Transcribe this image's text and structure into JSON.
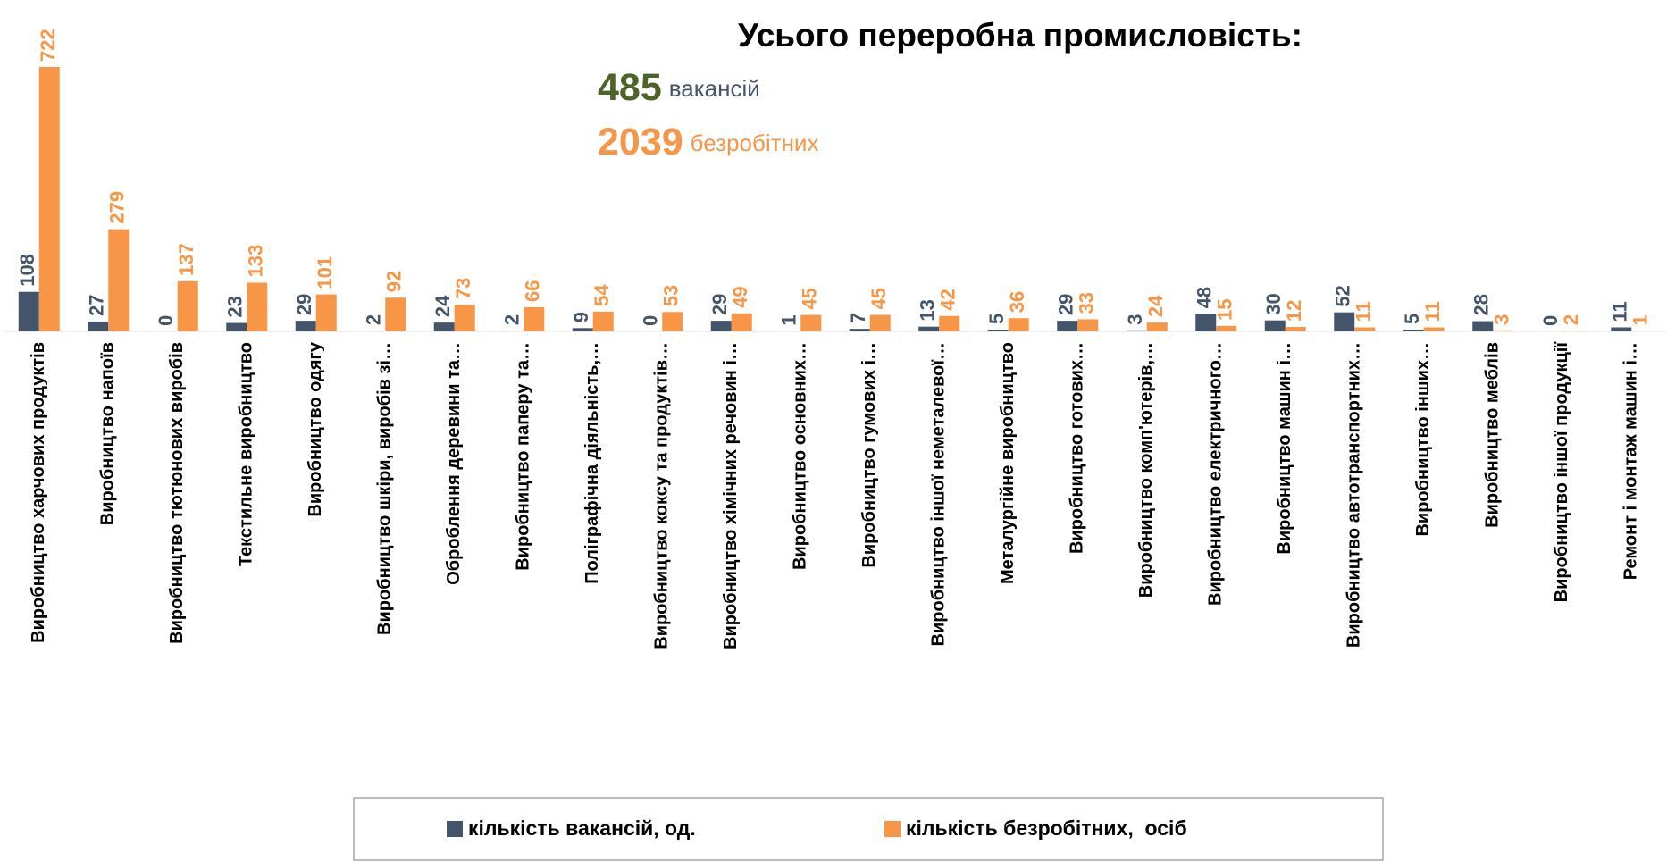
{
  "chart_data": {
    "type": "bar",
    "title": "Усього переробна промисловість:",
    "annotations": [
      {
        "number": "485",
        "text": "вакансій",
        "color": "#4f6228"
      },
      {
        "number": "2039",
        "text": "безробітних",
        "color": "#f79646"
      }
    ],
    "categories": [
      "Виробництво харчових продуктів",
      "Виробництво напоїв",
      "Виробництво тютюнових виробів",
      "Текстильне виробництво",
      "Виробництво одягу",
      "Виробництво шкіри, виробів зі…",
      "Оброблення деревини та…",
      "Виробництво паперу та…",
      "Поліграфічна діяльність,…",
      "Виробництво коксу та продуктів…",
      "Виробництво хімічних речовин і…",
      "Виробництво основних…",
      "Виробництво гумових і…",
      "Виробництво іншої неметалевої…",
      "Металургійне виробництво",
      "Виробництво готових…",
      "Виробництво комп'ютерів,…",
      "Виробництво електричного…",
      "Виробництво машин і…",
      "Виробництво автотранспортних…",
      "Виробництво інших…",
      "Виробництво меблів",
      "Виробництво іншої продукції",
      "Ремонт і монтаж машин і…"
    ],
    "series": [
      {
        "name": "кількість вакансій, од.",
        "color": "#44546a",
        "values": [
          108,
          27,
          0,
          23,
          29,
          2,
          24,
          2,
          9,
          0,
          29,
          1,
          7,
          13,
          5,
          29,
          3,
          48,
          30,
          52,
          5,
          28,
          0,
          11
        ]
      },
      {
        "name": "кількість безробітних,  осіб",
        "color": "#f79646",
        "values": [
          722,
          279,
          137,
          133,
          101,
          92,
          73,
          66,
          54,
          53,
          49,
          45,
          45,
          42,
          36,
          33,
          24,
          15,
          12,
          11,
          11,
          3,
          2,
          1
        ]
      }
    ],
    "legend": "bottom"
  }
}
